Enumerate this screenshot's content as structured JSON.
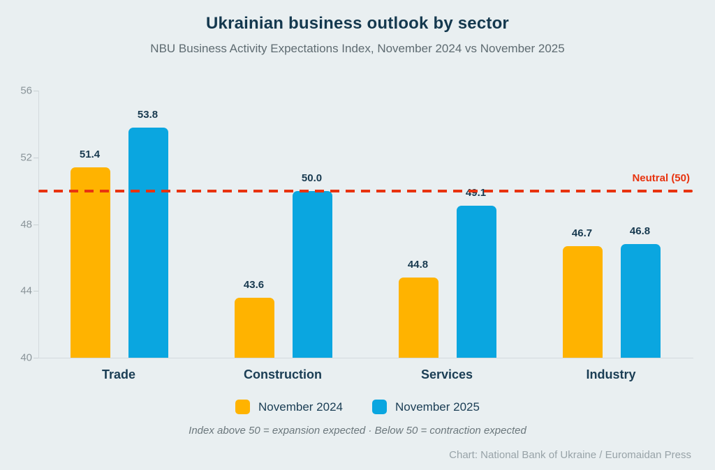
{
  "title": "Ukrainian business outlook by sector",
  "subtitle": "NBU Business Activity Expectations Index, November 2024 vs November 2025",
  "chart_data": {
    "type": "bar",
    "categories": [
      "Trade",
      "Construction",
      "Services",
      "Industry"
    ],
    "series": [
      {
        "name": "November 2024",
        "color": "#FFB300",
        "values": [
          51.4,
          43.6,
          44.8,
          46.7
        ]
      },
      {
        "name": "November 2025",
        "color": "#0AA6E0",
        "values": [
          53.8,
          50.0,
          49.1,
          46.8
        ]
      }
    ],
    "ylim": [
      40,
      56
    ],
    "yticks": [
      40,
      44,
      48,
      52,
      56
    ],
    "grid": false,
    "legend_position": "bottom",
    "value_labels_decimals": 1,
    "reference_line": {
      "value": 50,
      "label": "Neutral (50)",
      "color": "#E8330F",
      "style": "dashed"
    }
  },
  "footnote": "Index above 50 = expansion expected · Below 50 = contraction expected",
  "credit": "Chart: National Bank of Ukraine / Euromaidan Press",
  "colors": {
    "background": "#E9EFF1",
    "title_text": "#14384E",
    "muted_text": "#5E6B71",
    "axis_text": "#8A9499",
    "axis_line": "#D3DADD"
  }
}
